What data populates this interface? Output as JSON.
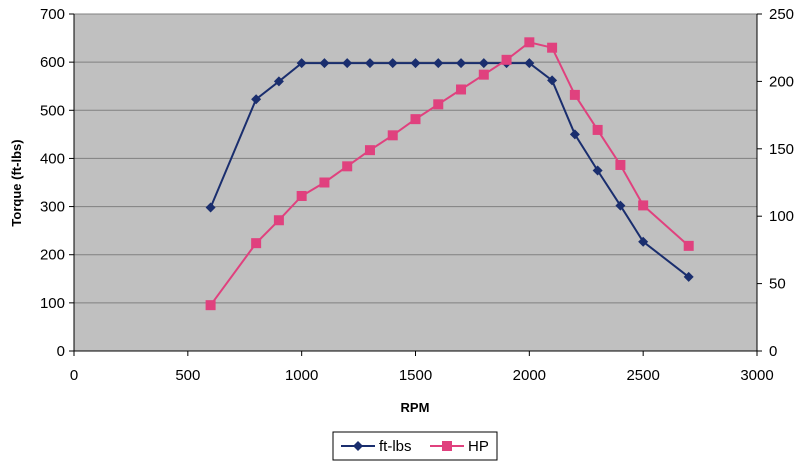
{
  "chart_data": {
    "type": "line",
    "title": "",
    "xlabel": "RPM",
    "ylabel": "Torque (ft-lbs)",
    "y2label": "",
    "xlim": [
      0,
      3000
    ],
    "ylim": [
      0,
      700
    ],
    "y2lim": [
      0,
      250
    ],
    "xticks": [
      0,
      500,
      1000,
      1500,
      2000,
      2500,
      3000
    ],
    "yticks": [
      0,
      100,
      200,
      300,
      400,
      500,
      600,
      700
    ],
    "y2ticks": [
      0,
      50,
      100,
      150,
      200,
      250
    ],
    "grid": true,
    "legend_position": "bottom-center",
    "plot_background": "#c0c0c0",
    "series": [
      {
        "name": "ft-lbs",
        "axis": "left",
        "color": "#1a2e6e",
        "marker": "diamond",
        "x": [
          600,
          800,
          900,
          1000,
          1100,
          1200,
          1300,
          1400,
          1500,
          1600,
          1700,
          1800,
          1900,
          2000,
          2100,
          2200,
          2300,
          2400,
          2500,
          2700
        ],
        "y": [
          298,
          523,
          560,
          598,
          598,
          598,
          598,
          598,
          598,
          598,
          598,
          598,
          598,
          598,
          562,
          450,
          375,
          302,
          227,
          154
        ]
      },
      {
        "name": "HP",
        "axis": "right",
        "color": "#e0417e",
        "marker": "square",
        "x": [
          600,
          800,
          900,
          1000,
          1100,
          1200,
          1300,
          1400,
          1500,
          1600,
          1700,
          1800,
          1900,
          2000,
          2100,
          2200,
          2300,
          2400,
          2500,
          2700
        ],
        "y": [
          34,
          80,
          97,
          115,
          125,
          137,
          149,
          160,
          172,
          183,
          194,
          205,
          216,
          229,
          225,
          190,
          164,
          138,
          108,
          78
        ]
      }
    ]
  }
}
